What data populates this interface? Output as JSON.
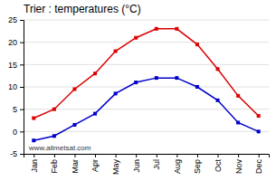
{
  "chart_data": {
    "type": "line",
    "title": "Trier : temperatures (°C)",
    "categories": [
      "Jan",
      "Feb",
      "Mar",
      "Apr",
      "May",
      "Jun",
      "Jul",
      "Aug",
      "Sep",
      "Oct",
      "Nov",
      "Dec"
    ],
    "series": [
      {
        "color": "#dd0000",
        "marker": "square",
        "values": [
          3,
          5,
          9.5,
          13,
          18,
          21,
          23,
          23,
          19.5,
          14,
          8,
          3.5
        ]
      },
      {
        "color": "#0000cc",
        "marker": "square",
        "values": [
          -2,
          -1,
          1.5,
          4,
          8.5,
          11,
          12,
          12,
          10,
          7,
          2,
          0
        ]
      }
    ],
    "ylim": [
      -5,
      25
    ],
    "yticks": [
      -5,
      0,
      5,
      10,
      15,
      20,
      25
    ],
    "grid": true,
    "annotations": [
      {
        "text": "www.allmetsat.com"
      }
    ]
  }
}
